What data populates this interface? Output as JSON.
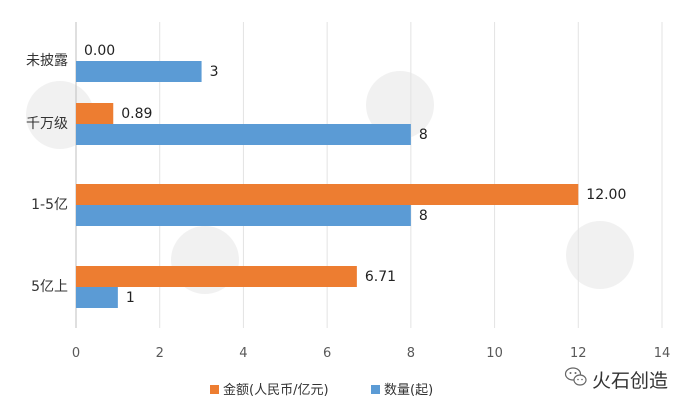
{
  "chart_data": {
    "type": "bar",
    "orientation": "horizontal",
    "categories": [
      "未披露",
      "千万级",
      "1-5亿",
      "5亿上"
    ],
    "series": [
      {
        "name": "金额(人民币/亿元)",
        "color": "#ED7D31",
        "values": [
          0.0,
          0.89,
          12.0,
          6.71
        ],
        "labels": [
          "0.00",
          "0.89",
          "12.00",
          "6.71"
        ]
      },
      {
        "name": "数量(起)",
        "color": "#5B9BD5",
        "values": [
          3,
          8,
          8,
          1
        ],
        "labels": [
          "3",
          "8",
          "8",
          "1"
        ]
      }
    ],
    "xlim": [
      0,
      14
    ],
    "xticks": [
      "0",
      "2",
      "4",
      "6",
      "8",
      "10",
      "12",
      "14"
    ],
    "grid": "vertical",
    "legend_position": "bottom"
  },
  "watermark": {
    "text": "火石创造",
    "icon": "wechat-icon"
  }
}
